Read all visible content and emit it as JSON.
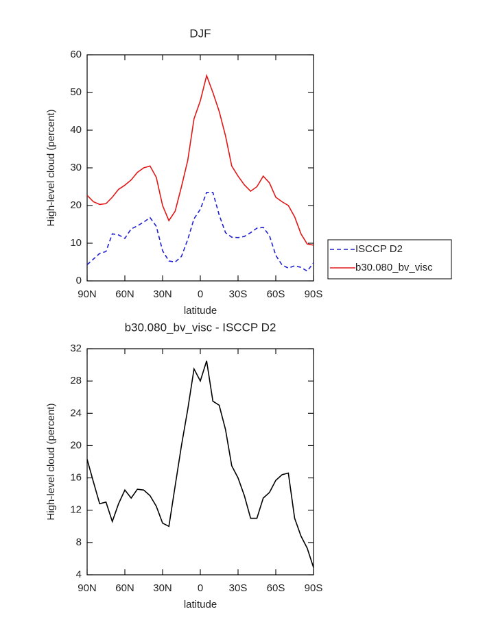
{
  "chart_data": [
    {
      "type": "line",
      "title": "DJF",
      "xlabel": "latitude",
      "ylabel": "High-level cloud (percent)",
      "x": [
        90,
        85,
        80,
        75,
        70,
        65,
        60,
        55,
        50,
        45,
        40,
        35,
        30,
        25,
        20,
        15,
        10,
        5,
        0,
        -5,
        -10,
        -15,
        -20,
        -25,
        -30,
        -35,
        -40,
        -45,
        -50,
        -55,
        -60,
        -65,
        -70,
        -75,
        -80,
        -85,
        -90
      ],
      "xlim": [
        90,
        -90
      ],
      "xticks": [
        {
          "value": 90,
          "label": "90N"
        },
        {
          "value": 60,
          "label": "60N"
        },
        {
          "value": 30,
          "label": "30N"
        },
        0,
        {
          "value": -30,
          "label": "30S"
        },
        {
          "value": -60,
          "label": "60S"
        },
        {
          "value": -90,
          "label": "90S"
        }
      ],
      "ylim": [
        0,
        60
      ],
      "yticks": [
        0,
        10,
        20,
        30,
        40,
        50,
        60
      ],
      "legend": "right",
      "series": [
        {
          "name": "ISCCP D2",
          "color": "#1f1fd0",
          "style": "dashed",
          "values": [
            4.3,
            5.8,
            7.3,
            7.8,
            12.5,
            12.2,
            11.3,
            13.8,
            14.6,
            15.6,
            16.8,
            14.5,
            8.0,
            5.3,
            5.0,
            6.5,
            11.0,
            16.5,
            19.0,
            23.5,
            23.5,
            17.5,
            12.8,
            11.6,
            11.5,
            11.8,
            12.8,
            14.0,
            14.2,
            12.0,
            6.8,
            4.2,
            3.4,
            4.0,
            3.6,
            2.6,
            4.8
          ]
        },
        {
          "name": "b30.080_bv_visc",
          "color": "#e01818",
          "style": "solid",
          "values": [
            22.7,
            21.0,
            20.3,
            20.5,
            22.2,
            24.3,
            25.4,
            26.8,
            28.8,
            30.0,
            30.5,
            27.5,
            20.0,
            16.0,
            18.5,
            25.0,
            32.0,
            43.0,
            47.8,
            54.5,
            50.0,
            45.0,
            38.5,
            30.5,
            27.8,
            25.5,
            23.8,
            25.0,
            27.8,
            26.0,
            22.2,
            21.0,
            20.0,
            17.0,
            12.5,
            9.8,
            9.5
          ]
        }
      ]
    },
    {
      "type": "line",
      "title": "b30.080_bv_visc - ISCCP D2",
      "xlabel": "latitude",
      "ylabel": "High-level cloud (percent)",
      "x": [
        90,
        85,
        80,
        75,
        70,
        65,
        60,
        55,
        50,
        45,
        40,
        35,
        30,
        25,
        20,
        15,
        10,
        5,
        0,
        -5,
        -10,
        -15,
        -20,
        -25,
        -30,
        -35,
        -40,
        -45,
        -50,
        -55,
        -60,
        -65,
        -70,
        -75,
        -80,
        -85,
        -90
      ],
      "xlim": [
        90,
        -90
      ],
      "xticks": [
        {
          "value": 90,
          "label": "90N"
        },
        {
          "value": 60,
          "label": "60N"
        },
        {
          "value": 30,
          "label": "30N"
        },
        0,
        {
          "value": -30,
          "label": "30S"
        },
        {
          "value": -60,
          "label": "60S"
        },
        {
          "value": -90,
          "label": "90S"
        }
      ],
      "ylim": [
        4,
        32
      ],
      "yticks": [
        4,
        8,
        12,
        16,
        20,
        24,
        28,
        32
      ],
      "series": [
        {
          "color": "#000000",
          "style": "solid",
          "values": [
            18.3,
            15.5,
            12.8,
            13.0,
            10.6,
            12.8,
            14.5,
            13.5,
            14.6,
            14.5,
            13.8,
            12.5,
            10.4,
            10.0,
            15.0,
            20.0,
            24.5,
            29.5,
            28.0,
            30.5,
            25.5,
            25.0,
            22.0,
            17.5,
            16.0,
            13.8,
            11.0,
            11.0,
            13.5,
            14.2,
            15.7,
            16.4,
            16.6,
            11.0,
            8.8,
            7.3,
            4.9
          ]
        }
      ]
    }
  ]
}
